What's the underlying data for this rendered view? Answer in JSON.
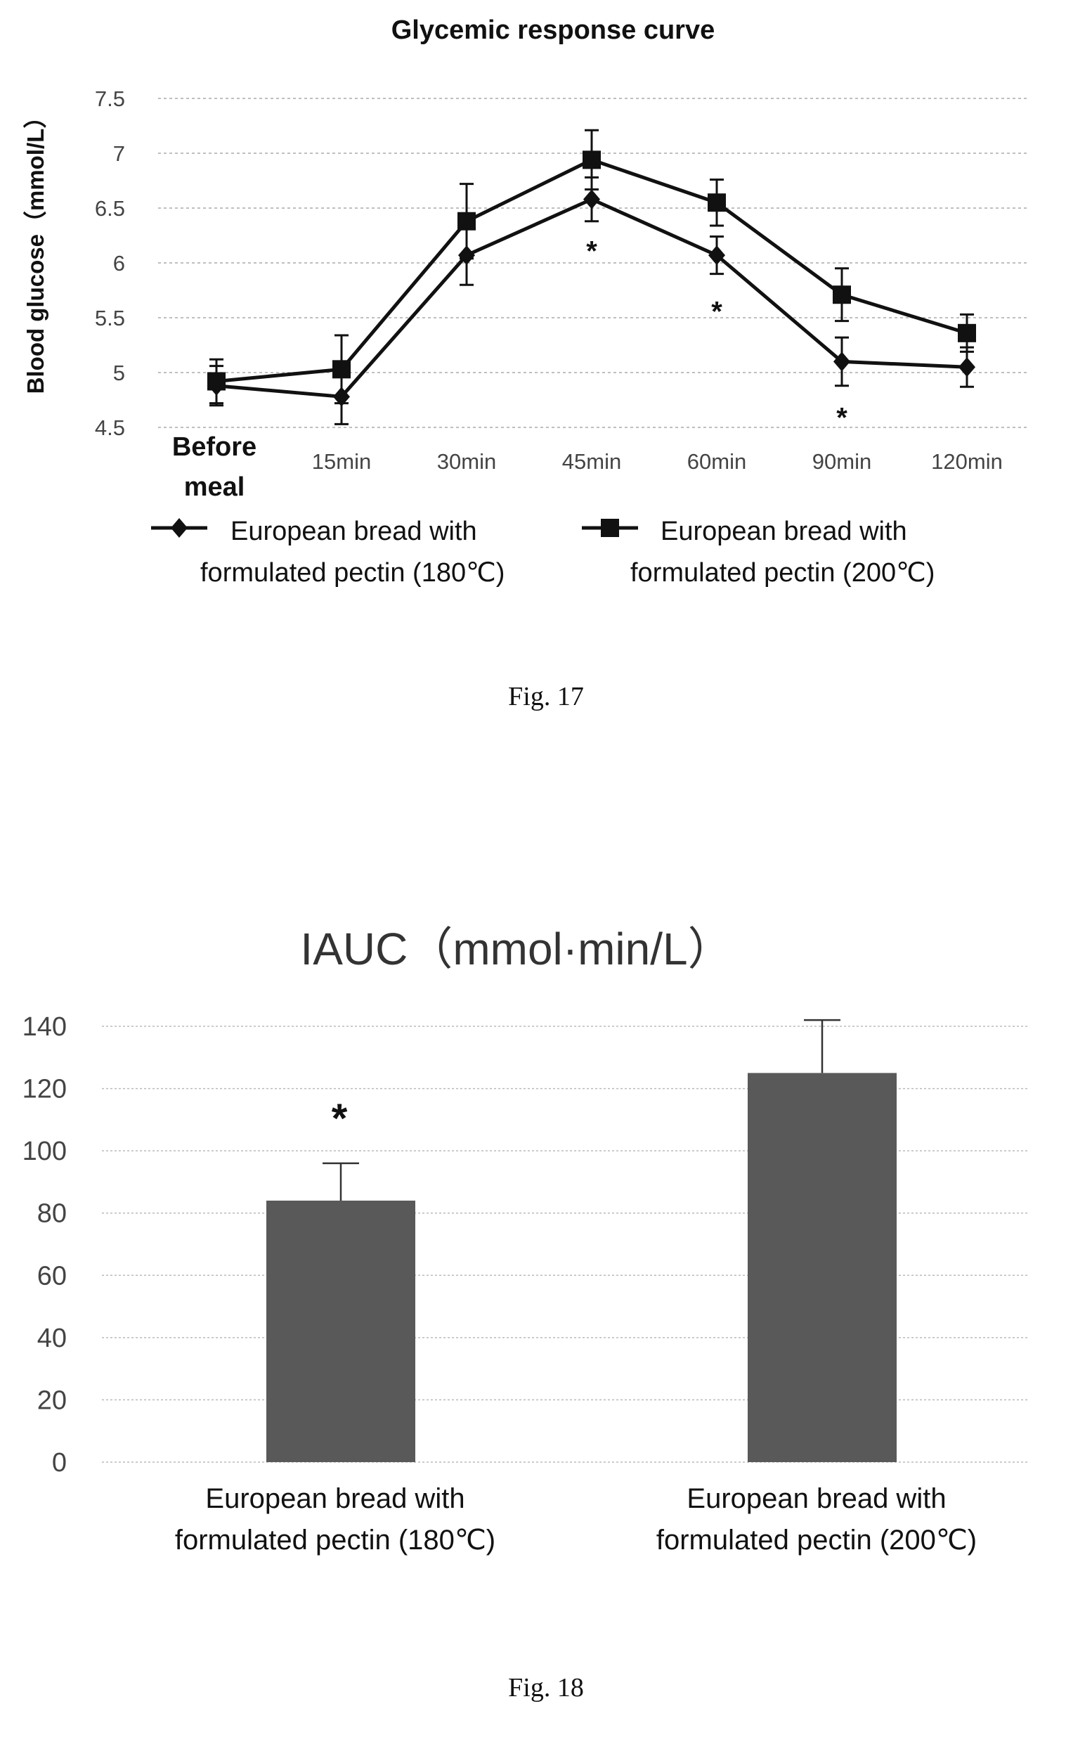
{
  "figure17": {
    "caption": "Fig. 17",
    "chart_data": {
      "type": "line",
      "title": "Glycemic response curve",
      "ylabel": "Blood glucose（mmol/L）",
      "xlabel": "",
      "categories": [
        "Before meal",
        "15min",
        "30min",
        "45min",
        "60min",
        "90min",
        "120min"
      ],
      "ylim": [
        4.5,
        7.5
      ],
      "yticks": [
        "4.5",
        "5",
        "5.5",
        "6",
        "6.5",
        "7",
        "7.5"
      ],
      "grid": true,
      "legend_position": "bottom",
      "series": [
        {
          "name": "European bread with formulated pectin (180℃)",
          "legend_lines": [
            "European bread with",
            "formulated pectin (180℃)"
          ],
          "marker": "diamond",
          "values": [
            4.88,
            4.78,
            6.07,
            6.58,
            6.07,
            5.1,
            5.05
          ],
          "error": [
            0.18,
            0.25,
            0.27,
            0.2,
            0.17,
            0.22,
            0.18
          ]
        },
        {
          "name": "European bread with formulated pectin (200℃)",
          "legend_lines": [
            "European bread with",
            "formulated pectin (200℃)"
          ],
          "marker": "square",
          "values": [
            4.92,
            5.03,
            6.38,
            6.94,
            6.55,
            5.71,
            5.36
          ],
          "error": [
            0.2,
            0.31,
            0.34,
            0.27,
            0.21,
            0.24,
            0.17
          ]
        }
      ],
      "annotations": [
        {
          "text": "*",
          "category": "45min",
          "y": 6.15
        },
        {
          "text": "*",
          "category": "60min",
          "y": 5.6
        },
        {
          "text": "*",
          "category": "90min",
          "y": 4.63
        }
      ]
    }
  },
  "figure18": {
    "caption": "Fig. 18",
    "chart_data": {
      "type": "bar",
      "title": "IAUC（mmol·min/L）",
      "categories": [
        "European bread with formulated pectin (180℃)",
        "European bread with formulated pectin (200℃)"
      ],
      "category_lines": [
        [
          "European bread with",
          "formulated pectin (180℃)"
        ],
        [
          "European bread with",
          "formulated pectin (200℃)"
        ]
      ],
      "values": [
        84,
        125
      ],
      "error": [
        12,
        17
      ],
      "ylim": [
        0,
        140
      ],
      "yticks": [
        "0",
        "20",
        "40",
        "60",
        "80",
        "100",
        "120",
        "140"
      ],
      "grid": true,
      "bar_color": "#595959",
      "annotations": [
        {
          "text": "*",
          "category_index": 0,
          "y": 114
        }
      ]
    }
  }
}
